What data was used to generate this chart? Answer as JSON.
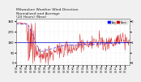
{
  "title": "Milwaukee Weather Wind Direction\nNormalized and Average\n(24 Hours) (New)",
  "title_fontsize": 3.2,
  "bg_color": "#f0f0f0",
  "plot_bg": "#ffffff",
  "ylim": [
    -20,
    380
  ],
  "yticks": [
    0,
    90,
    180,
    270,
    360
  ],
  "ytick_fontsize": 2.8,
  "xtick_fontsize": 2.2,
  "num_points": 288,
  "red_color": "#cc0000",
  "blue_solid_color": "#0000cc",
  "blue_dash_color": "#3333ff",
  "legend_blue": "#0000ff",
  "legend_red": "#cc0000",
  "grid_color": "#bbbbbb",
  "grid_alpha": 0.8,
  "y_right_labels": [
    "1",
    ".",
    "1",
    ".",
    "0"
  ]
}
